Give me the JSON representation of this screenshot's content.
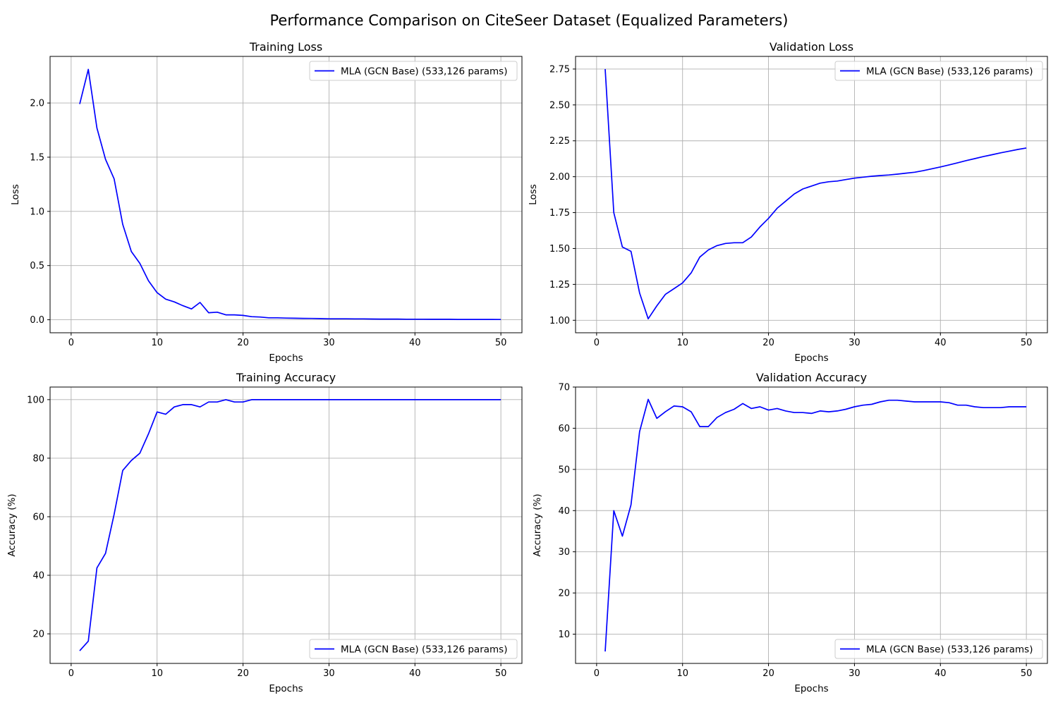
{
  "figure_title": "Performance Comparison on CiteSeer Dataset (Equalized Parameters)",
  "colors": {
    "series": "#0000ff",
    "grid": "#b0b0b0",
    "legend_border": "#cccccc"
  },
  "chart_data": [
    {
      "type": "line",
      "title": "Training Loss",
      "xlabel": "Epochs",
      "ylabel": "Loss",
      "xlim": [
        -2.45,
        52.45
      ],
      "ylim": [
        -0.12,
        2.43
      ],
      "xticks": [
        0,
        10,
        20,
        30,
        40,
        50
      ],
      "yticks": [
        0.0,
        0.5,
        1.0,
        1.5,
        2.0
      ],
      "ytick_format": 1,
      "grid": true,
      "legend_placement": "upper right",
      "series": [
        {
          "name": "MLA (GCN Base) (533,126 params)",
          "color": "#0000ff",
          "x": [
            1,
            2,
            3,
            4,
            5,
            6,
            7,
            8,
            9,
            10,
            11,
            12,
            13,
            14,
            15,
            16,
            17,
            18,
            19,
            20,
            21,
            22,
            23,
            24,
            25,
            26,
            27,
            28,
            29,
            30,
            31,
            32,
            33,
            34,
            35,
            36,
            37,
            38,
            39,
            40,
            41,
            42,
            43,
            44,
            45,
            46,
            47,
            48,
            49,
            50
          ],
          "y": [
            1.99,
            2.31,
            1.77,
            1.48,
            1.3,
            0.88,
            0.63,
            0.52,
            0.36,
            0.25,
            0.19,
            0.165,
            0.13,
            0.1,
            0.16,
            0.065,
            0.07,
            0.045,
            0.045,
            0.04,
            0.028,
            0.025,
            0.018,
            0.018,
            0.015,
            0.014,
            0.013,
            0.012,
            0.011,
            0.009,
            0.009,
            0.009,
            0.008,
            0.008,
            0.007,
            0.006,
            0.006,
            0.006,
            0.005,
            0.005,
            0.005,
            0.004,
            0.004,
            0.004,
            0.003,
            0.003,
            0.003,
            0.003,
            0.003,
            0.002
          ]
        }
      ]
    },
    {
      "type": "line",
      "title": "Validation Loss",
      "xlabel": "Epochs",
      "ylabel": "Loss",
      "xlim": [
        -2.45,
        52.45
      ],
      "ylim": [
        0.913,
        2.838
      ],
      "xticks": [
        0,
        10,
        20,
        30,
        40,
        50
      ],
      "yticks": [
        1.0,
        1.25,
        1.5,
        1.75,
        2.0,
        2.25,
        2.5,
        2.75
      ],
      "ytick_format": 2,
      "grid": true,
      "legend_placement": "upper right",
      "series": [
        {
          "name": "MLA (GCN Base) (533,126 params)",
          "color": "#0000ff",
          "x": [
            1,
            2,
            3,
            4,
            5,
            6,
            7,
            8,
            9,
            10,
            11,
            12,
            13,
            14,
            15,
            16,
            17,
            18,
            19,
            20,
            21,
            22,
            23,
            24,
            25,
            26,
            27,
            28,
            29,
            30,
            31,
            32,
            33,
            34,
            35,
            36,
            37,
            38,
            39,
            40,
            41,
            42,
            43,
            44,
            45,
            46,
            47,
            48,
            49,
            50
          ],
          "y": [
            2.75,
            1.75,
            1.51,
            1.48,
            1.19,
            1.01,
            1.1,
            1.18,
            1.22,
            1.26,
            1.33,
            1.44,
            1.49,
            1.52,
            1.535,
            1.54,
            1.54,
            1.58,
            1.65,
            1.71,
            1.78,
            1.83,
            1.88,
            1.915,
            1.935,
            1.955,
            1.965,
            1.97,
            1.98,
            1.99,
            1.997,
            2.003,
            2.008,
            2.012,
            2.018,
            2.025,
            2.031,
            2.042,
            2.055,
            2.068,
            2.082,
            2.097,
            2.112,
            2.126,
            2.14,
            2.153,
            2.166,
            2.178,
            2.19,
            2.2
          ]
        }
      ]
    },
    {
      "type": "line",
      "title": "Training Accuracy",
      "xlabel": "Epochs",
      "ylabel": "Accuracy (%)",
      "xlim": [
        -2.45,
        52.45
      ],
      "ylim": [
        9.9,
        104.3
      ],
      "xticks": [
        0,
        10,
        20,
        30,
        40,
        50
      ],
      "yticks": [
        20,
        40,
        60,
        80,
        100
      ],
      "ytick_format": 0,
      "grid": true,
      "legend_placement": "lower right",
      "series": [
        {
          "name": "MLA (GCN Base) (533,126 params)",
          "color": "#0000ff",
          "x": [
            1,
            2,
            3,
            4,
            5,
            6,
            7,
            8,
            9,
            10,
            11,
            12,
            13,
            14,
            15,
            16,
            17,
            18,
            19,
            20,
            21,
            22,
            23,
            24,
            25,
            26,
            27,
            28,
            29,
            30,
            31,
            32,
            33,
            34,
            35,
            36,
            37,
            38,
            39,
            40,
            41,
            42,
            43,
            44,
            45,
            46,
            47,
            48,
            49,
            50
          ],
          "y": [
            14.2,
            17.5,
            42.5,
            47.5,
            60.8,
            75.8,
            79.2,
            81.7,
            88.3,
            95.8,
            95.0,
            97.5,
            98.3,
            98.3,
            97.5,
            99.2,
            99.2,
            100,
            99.2,
            99.2,
            100,
            100,
            100,
            100,
            100,
            100,
            100,
            100,
            100,
            100,
            100,
            100,
            100,
            100,
            100,
            100,
            100,
            100,
            100,
            100,
            100,
            100,
            100,
            100,
            100,
            100,
            100,
            100,
            100,
            100
          ]
        }
      ]
    },
    {
      "type": "line",
      "title": "Validation Accuracy",
      "xlabel": "Epochs",
      "ylabel": "Accuracy (%)",
      "xlim": [
        -2.45,
        52.45
      ],
      "ylim": [
        2.9,
        70.0
      ],
      "xticks": [
        0,
        10,
        20,
        30,
        40,
        50
      ],
      "yticks": [
        10,
        20,
        30,
        40,
        50,
        60,
        70
      ],
      "ytick_format": 0,
      "grid": true,
      "legend_placement": "lower right",
      "series": [
        {
          "name": "MLA (GCN Base) (533,126 params)",
          "color": "#0000ff",
          "x": [
            1,
            2,
            3,
            4,
            5,
            6,
            7,
            8,
            9,
            10,
            11,
            12,
            13,
            14,
            15,
            16,
            17,
            18,
            19,
            20,
            21,
            22,
            23,
            24,
            25,
            26,
            27,
            28,
            29,
            30,
            31,
            32,
            33,
            34,
            35,
            36,
            37,
            38,
            39,
            40,
            41,
            42,
            43,
            44,
            45,
            46,
            47,
            48,
            49,
            50
          ],
          "y": [
            5.8,
            40.0,
            33.8,
            41.4,
            59.2,
            67.0,
            62.4,
            64.0,
            65.4,
            65.2,
            64.0,
            60.4,
            60.4,
            62.6,
            63.8,
            64.6,
            66.0,
            64.8,
            65.2,
            64.4,
            64.8,
            64.2,
            63.8,
            63.8,
            63.6,
            64.2,
            64.0,
            64.2,
            64.6,
            65.2,
            65.6,
            65.8,
            66.4,
            66.8,
            66.8,
            66.6,
            66.4,
            66.4,
            66.4,
            66.4,
            66.2,
            65.6,
            65.6,
            65.2,
            65.0,
            65.0,
            65.0,
            65.2,
            65.2,
            65.2
          ]
        }
      ]
    }
  ]
}
